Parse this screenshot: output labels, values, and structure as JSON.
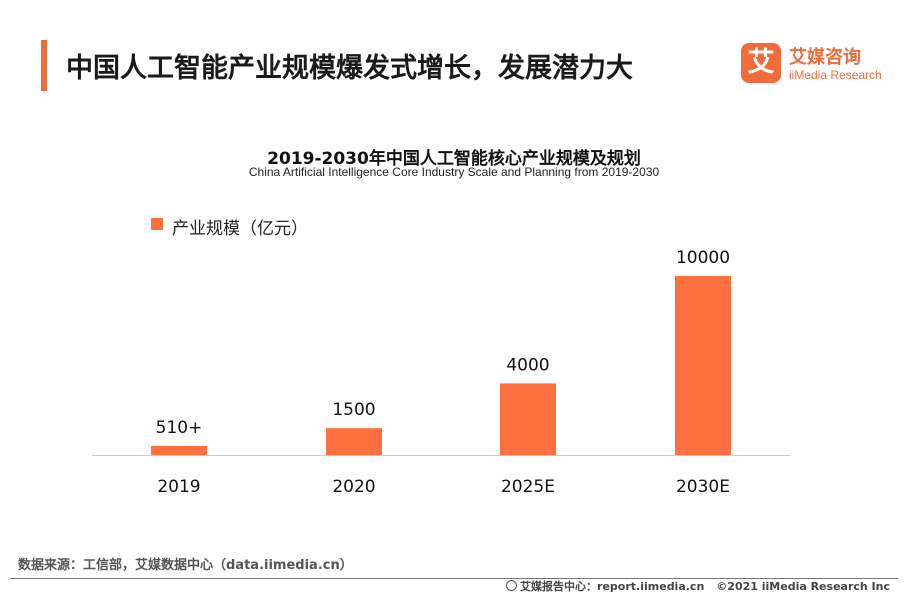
{
  "header": {
    "title": "中国人工智能产业规模爆发式增长，发展潜力大"
  },
  "logo": {
    "mark": "艾",
    "name_cn": "艾媒咨询",
    "name_en": "iiMedia Research",
    "icon": "iimedia-logo-icon"
  },
  "chart_data": {
    "type": "bar",
    "title": "2019-2030年中国人工智能核心产业规模及规划",
    "subtitle": "China Artificial Intelligence Core Industry Scale and Planning from 2019-2030",
    "categories": [
      "2019",
      "2020",
      "2025E",
      "2030E"
    ],
    "series": [
      {
        "name": "产业规模（亿元）",
        "values": [
          510,
          1500,
          4000,
          10000
        ],
        "color": "#ff6f40"
      }
    ],
    "data_labels": [
      "510+",
      "1500",
      "4000",
      "10000"
    ],
    "ylim": [
      0,
      10000
    ],
    "grid": false,
    "legend_position": "top-left",
    "xlabel": "",
    "ylabel": ""
  },
  "footer": {
    "source": "数据来源：工信部，艾媒数据中心（data.iimedia.cn）",
    "report": "艾媒报告中心：report.iimedia.cn",
    "copyright": "©2021  iiMedia Research  Inc"
  },
  "colors": {
    "accent": "#f26b3a",
    "bar": "#ff6f40",
    "axis": "#cccccc"
  }
}
